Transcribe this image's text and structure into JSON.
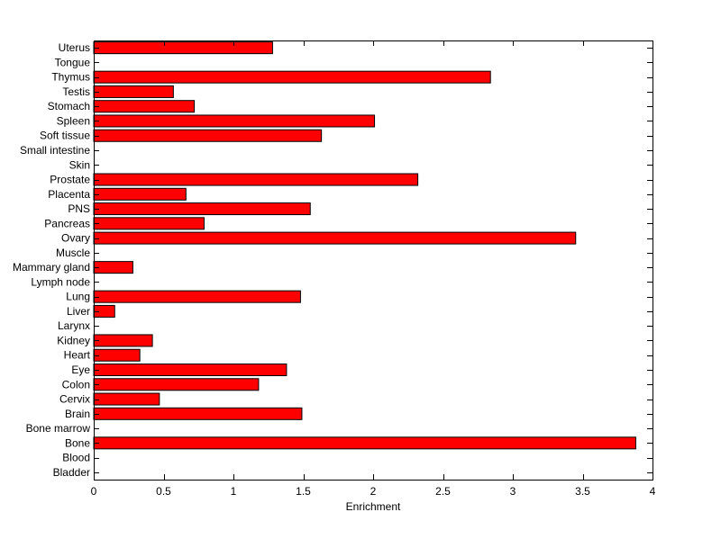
{
  "chart_data": {
    "type": "bar",
    "orientation": "horizontal",
    "categories": [
      "Bladder",
      "Blood",
      "Bone",
      "Bone marrow",
      "Brain",
      "Cervix",
      "Colon",
      "Eye",
      "Heart",
      "Kidney",
      "Larynx",
      "Liver",
      "Lung",
      "Lymph node",
      "Mammary gland",
      "Muscle",
      "Ovary",
      "Pancreas",
      "PNS",
      "Placenta",
      "Prostate",
      "Skin",
      "Small intestine",
      "Soft tissue",
      "Spleen",
      "Stomach",
      "Testis",
      "Thymus",
      "Tongue",
      "Uterus"
    ],
    "values": [
      0,
      0,
      3.88,
      0,
      1.49,
      0.47,
      1.18,
      1.38,
      0.33,
      0.42,
      0,
      0.15,
      1.48,
      0,
      0.28,
      0,
      3.45,
      0.79,
      1.55,
      0.66,
      2.32,
      0,
      0,
      1.63,
      2.01,
      0.72,
      0.57,
      2.84,
      0,
      1.28
    ],
    "xlabel": "Enrichment",
    "ylabel": "",
    "title": "",
    "xlim": [
      0,
      4
    ],
    "xticks": [
      "0",
      "0.5",
      "1",
      "1.5",
      "2",
      "2.5",
      "3",
      "3.5",
      "4"
    ],
    "grid": false,
    "bar_color": "#ff0000",
    "edge_color": "#000000"
  }
}
